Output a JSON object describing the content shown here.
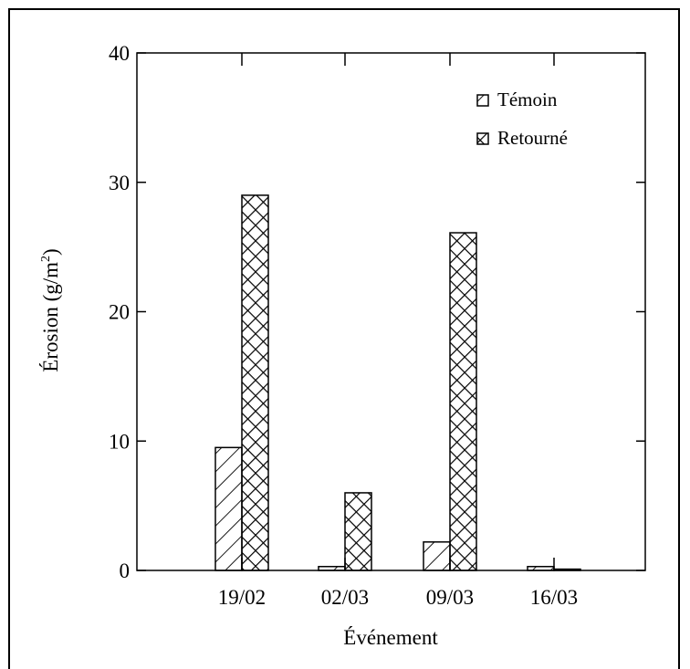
{
  "chart_data": {
    "type": "bar",
    "title": "",
    "xlabel": "Événement",
    "ylabel": "Érosion (g/m",
    "ylabel_sup": "2",
    "ylabel_close": ")",
    "ylim": [
      0,
      40
    ],
    "yticks": [
      0,
      10,
      20,
      30,
      40
    ],
    "categories": [
      "19/02",
      "02/03",
      "09/03",
      "16/03"
    ],
    "series": [
      {
        "name": "Témoin",
        "values": [
          9.5,
          0.3,
          2.2,
          0.3
        ],
        "pattern": "diagonal-hatch"
      },
      {
        "name": "Retourné",
        "values": [
          29.0,
          6.0,
          26.1,
          0.1
        ],
        "pattern": "cross-hatch"
      }
    ],
    "legend_position": "top-right",
    "grid": false,
    "colors": {
      "stroke": "#000000",
      "fill": "#ffffff"
    }
  }
}
